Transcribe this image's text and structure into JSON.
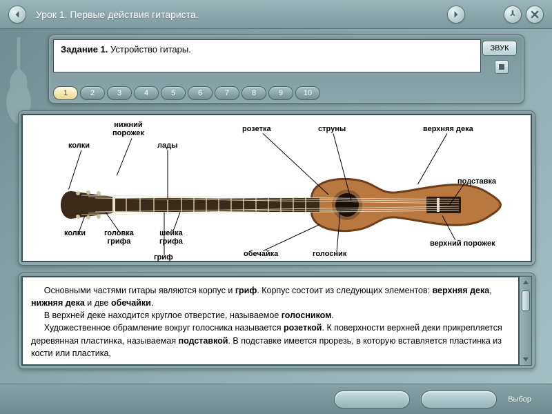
{
  "header": {
    "title": "Урок 1. Первые действия гитариста."
  },
  "task": {
    "label_bold": "Задание 1.",
    "label_rest": " Устройство гитары.",
    "sound_btn": "ЗВУК"
  },
  "tabs": {
    "count": 10,
    "active": 1
  },
  "diagram": {
    "labels": {
      "nizhniy_porozhek": "нижний\nпорожек",
      "kolki_top": "колки",
      "kolki_bottom": "колки",
      "lady": "лады",
      "golovka_grifa": "головка\nгрифа",
      "sheyka_grifa": "шейка\nгрифа",
      "grif": "гриф",
      "rozetka": "розетка",
      "obechayka": "обечайка",
      "golosnik": "голосник",
      "struny": "струны",
      "verkhnyaya_deka": "верхняя дека",
      "podstavka": "подставка",
      "verkhniy_porozhek": "верхний порожек"
    },
    "colors": {
      "body": "#b87840",
      "body_edge": "#6e3f1a",
      "neck": "#3a2a1a",
      "fret": "#d0c4a0",
      "head": "#3a2a1a",
      "soundhole": "#1a0f08",
      "rosette": "#8a5a30",
      "bridge": "#2a1a10",
      "string": "#e8e0c8"
    }
  },
  "text": {
    "paragraphs": [
      "Основными частями гитары являются корпус и <b>гриф</b>. Корпус состоит из следующих элементов: <b>верхняя дека</b>, <b>нижняя дека</b> и две <b>обечайки</b>.",
      "В верхней деке находится круглое отверстие, называемое <b>голосником</b>.",
      "Художественное обрамление вокруг голосника называется <b>розеткой</b>. К поверхности верхней деки прикрепляется деревянная пластинка, называемая <b>подставкой</b>. В подставке имеется прорезь, в которую вставляется пластинка из кости или пластика,"
    ]
  },
  "footer": {
    "vybor": "Выбор"
  }
}
